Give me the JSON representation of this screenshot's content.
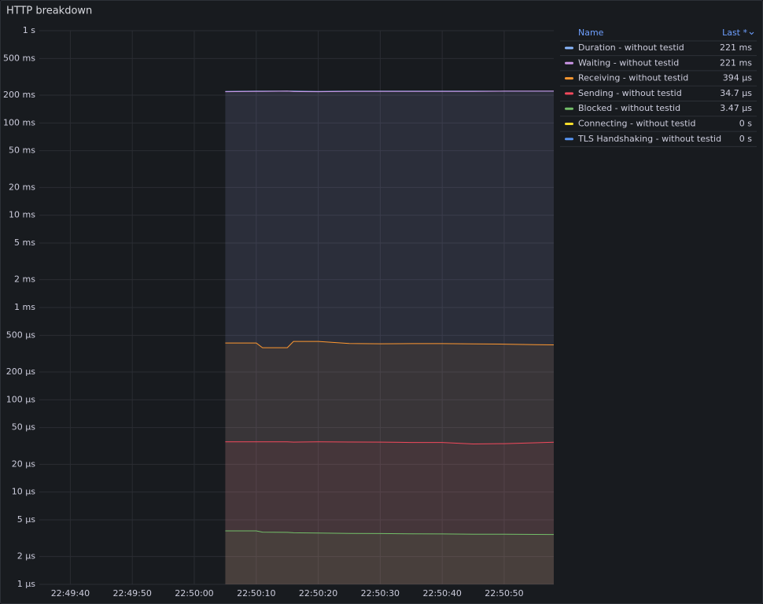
{
  "chart_data": {
    "type": "line",
    "title": "HTTP breakdown",
    "log_scale": true,
    "grid": true,
    "x": [
      "22:50:05",
      "22:50:10",
      "22:50:11",
      "22:50:15",
      "22:50:16",
      "22:50:20",
      "22:50:25",
      "22:50:30",
      "22:50:35",
      "22:50:40",
      "22:50:45",
      "22:50:50",
      "22:50:55",
      "22:50:58"
    ],
    "xlim": [
      "22:49:35",
      "22:50:58"
    ],
    "xticks": [
      "22:49:40",
      "22:49:50",
      "22:50:00",
      "22:50:10",
      "22:50:20",
      "22:50:30",
      "22:50:40",
      "22:50:50"
    ],
    "ylim": [
      1e-06,
      1
    ],
    "yticks": [
      {
        "value": 1,
        "label": "1 s"
      },
      {
        "value": 0.5,
        "label": "500 ms"
      },
      {
        "value": 0.2,
        "label": "200 ms"
      },
      {
        "value": 0.1,
        "label": "100 ms"
      },
      {
        "value": 0.05,
        "label": "50 ms"
      },
      {
        "value": 0.02,
        "label": "20 ms"
      },
      {
        "value": 0.01,
        "label": "10 ms"
      },
      {
        "value": 0.005,
        "label": "5 ms"
      },
      {
        "value": 0.002,
        "label": "2 ms"
      },
      {
        "value": 0.001,
        "label": "1 ms"
      },
      {
        "value": 0.0005,
        "label": "500 µs"
      },
      {
        "value": 0.0002,
        "label": "200 µs"
      },
      {
        "value": 0.0001,
        "label": "100 µs"
      },
      {
        "value": 5e-05,
        "label": "50 µs"
      },
      {
        "value": 2e-05,
        "label": "20 µs"
      },
      {
        "value": 1e-05,
        "label": "10 µs"
      },
      {
        "value": 5e-06,
        "label": "5 µs"
      },
      {
        "value": 2e-06,
        "label": "2 µs"
      },
      {
        "value": 1e-06,
        "label": "1 µs"
      }
    ],
    "legend": {
      "position": "right",
      "columns": [
        "Name",
        "Last *"
      ]
    },
    "series": [
      {
        "name": "Duration - without testid",
        "color": "#8ab8ff",
        "last": {
          "value": 0.221,
          "label": "221 ms"
        },
        "values": [
          0.22,
          0.221,
          0.221,
          0.222,
          0.221,
          0.22,
          0.221,
          0.221,
          0.221,
          0.221,
          0.221,
          0.221,
          0.221,
          0.221
        ]
      },
      {
        "name": "Waiting - without testid",
        "color": "#ca95e5",
        "last": {
          "value": 0.221,
          "label": "221 ms"
        },
        "values": [
          0.218,
          0.22,
          0.22,
          0.221,
          0.219,
          0.218,
          0.22,
          0.22,
          0.22,
          0.22,
          0.22,
          0.221,
          0.221,
          0.221
        ]
      },
      {
        "name": "Receiving - without testid",
        "color": "#ff9830",
        "last": {
          "value": 0.000394,
          "label": "394 µs"
        },
        "values": [
          0.000413,
          0.000413,
          0.000367,
          0.000367,
          0.000429,
          0.000429,
          0.000408,
          0.000405,
          0.000406,
          0.000406,
          0.000404,
          0.000401,
          0.000396,
          0.000394
        ]
      },
      {
        "name": "Sending - without testid",
        "color": "#f2495c",
        "last": {
          "value": 3.47e-05,
          "label": "34.7 µs"
        },
        "values": [
          3.5e-05,
          3.5e-05,
          3.5e-05,
          3.5e-05,
          3.48e-05,
          3.5e-05,
          3.49e-05,
          3.48e-05,
          3.45e-05,
          3.45e-05,
          3.32e-05,
          3.35e-05,
          3.42e-05,
          3.47e-05
        ]
      },
      {
        "name": "Blocked - without testid",
        "color": "#73bf69",
        "last": {
          "value": 3.47e-06,
          "label": "3.47 µs"
        },
        "values": [
          3.8e-06,
          3.8e-06,
          3.68e-06,
          3.66e-06,
          3.62e-06,
          3.6e-06,
          3.56e-06,
          3.55e-06,
          3.53e-06,
          3.52e-06,
          3.5e-06,
          3.5e-06,
          3.48e-06,
          3.47e-06
        ]
      },
      {
        "name": "Connecting - without testid",
        "color": "#fade2a",
        "last": {
          "value": 0,
          "label": "0 s"
        },
        "values": [
          0,
          0,
          0,
          0,
          0,
          0,
          0,
          0,
          0,
          0,
          0,
          0,
          0,
          0
        ]
      },
      {
        "name": "TLS Handshaking - without testid",
        "color": "#5794f2",
        "last": {
          "value": 0,
          "label": "0 s"
        },
        "values": [
          0,
          0,
          0,
          0,
          0,
          0,
          0,
          0,
          0,
          0,
          0,
          0,
          0,
          0
        ]
      }
    ]
  }
}
